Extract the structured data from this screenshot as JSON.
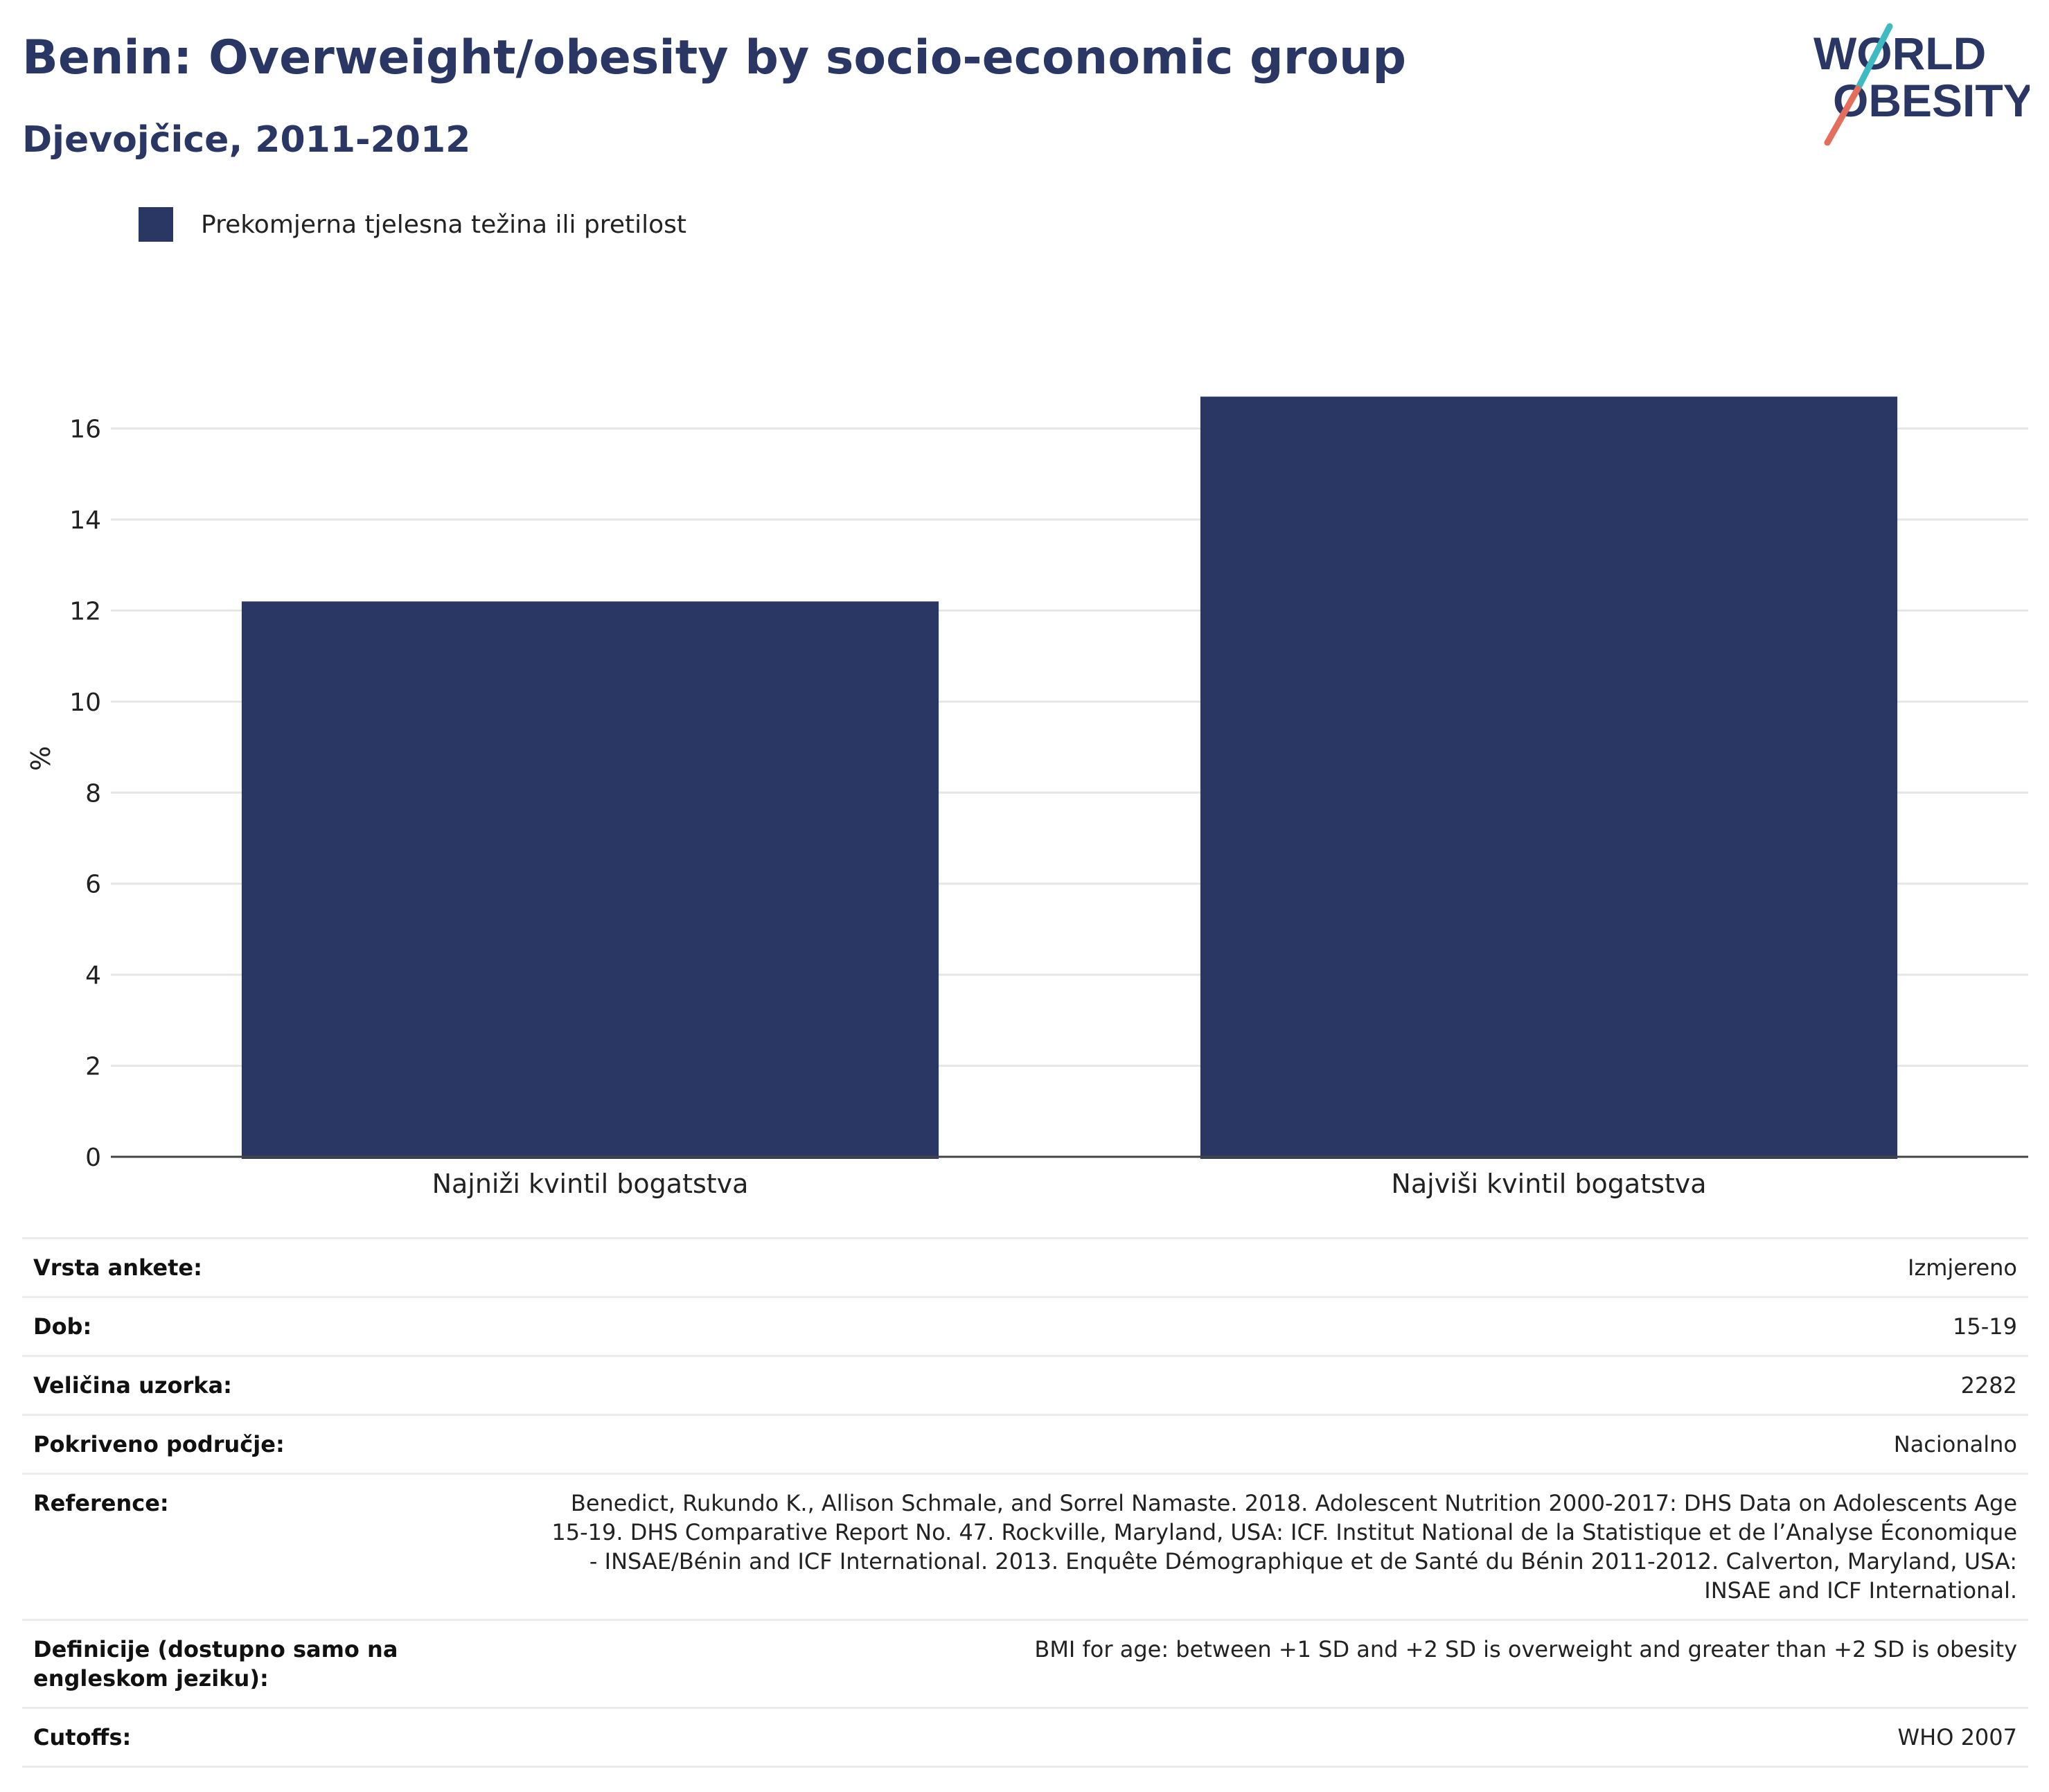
{
  "header": {
    "title": "Benin: Overweight/obesity by socio-economic group",
    "subtitle": "Djevojčice, 2011-2012",
    "logo_text": [
      "WORLD",
      "OBESITY"
    ]
  },
  "legend": {
    "label": "Prekomjerna tjelesna težina ili pretilost",
    "color": "#2a3663"
  },
  "chart_data": {
    "type": "bar",
    "categories": [
      "Najniži kvintil bogatstva",
      "Najviši kvintil bogatstva"
    ],
    "series": [
      {
        "name": "Prekomjerna tjelesna težina ili pretilost",
        "values": [
          12.2,
          16.7
        ],
        "color": "#2a3663"
      }
    ],
    "ylabel": "%",
    "ylim": [
      0,
      17.5
    ],
    "yticks": [
      0,
      2,
      4,
      6,
      8,
      10,
      12,
      14,
      16
    ],
    "grid": true,
    "legend_position": "top-left"
  },
  "info": [
    {
      "key": "Vrsta ankete:",
      "value": "Izmjereno"
    },
    {
      "key": "Dob:",
      "value": "15-19"
    },
    {
      "key": "Veličina uzorka:",
      "value": "2282"
    },
    {
      "key": "Pokriveno područje:",
      "value": "Nacionalno"
    },
    {
      "key": "Reference:",
      "value": "Benedict, Rukundo K., Allison Schmale, and Sorrel Namaste. 2018. Adolescent Nutrition 2000-2017: DHS Data on Adolescents Age 15-19. DHS Comparative Report No. 47. Rockville, Maryland, USA: ICF. Institut National de la Statistique et de l’Analyse Économique - INSAE/Bénin and ICF International. 2013. Enquête Démographique et de Santé du Bénin 2011-2012. Calverton, Maryland, USA: INSAE and ICF International."
    },
    {
      "key": "Definicije (dostupno samo na engleskom jeziku):",
      "value": "BMI for age: between +1 SD and +2 SD is overweight and greater than +2 SD is obesity"
    },
    {
      "key": "Cutoffs:",
      "value": "WHO 2007"
    }
  ]
}
